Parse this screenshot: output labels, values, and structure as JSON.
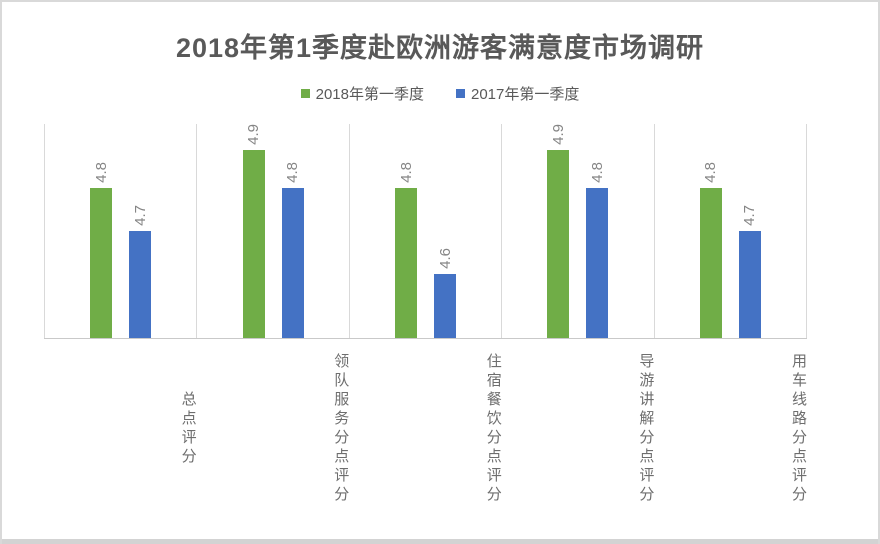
{
  "title": "2018年第1季度赴欧洲游客满意度市场调研",
  "legend": [
    {
      "label": "2018年第一季度",
      "color": "#70AD47"
    },
    {
      "label": "2017年第一季度",
      "color": "#4472C4"
    }
  ],
  "chart_data": {
    "type": "bar",
    "title": "2018年第1季度赴欧洲游客满意度市场调研",
    "categories": [
      "总点评分",
      "领队服务分点评分",
      "住宿餐饮分点评分",
      "导游讲解分点评分",
      "用车线路分点评分"
    ],
    "series": [
      {
        "name": "2018年第一季度",
        "color": "#70AD47",
        "values": [
          4.8,
          4.9,
          4.8,
          4.9,
          4.8
        ]
      },
      {
        "name": "2017年第一季度",
        "color": "#4472C4",
        "values": [
          4.7,
          4.8,
          4.6,
          4.8,
          4.7
        ]
      }
    ],
    "data_labels": true,
    "data_label_rotation": 270,
    "ylim": [
      4.45,
      4.95
    ],
    "y_axis_visible": false,
    "gridlines": "vertical-category-separators",
    "legend_position": "top",
    "colors": {
      "title": "#595959",
      "data_label": "#858585",
      "category_label": "#6e6e6e",
      "gridline": "#d9d9d9",
      "axis_line": "#c9c9c9",
      "frame_border": "#d9d9d9",
      "bottom_edge": "#d3d3d3"
    }
  }
}
